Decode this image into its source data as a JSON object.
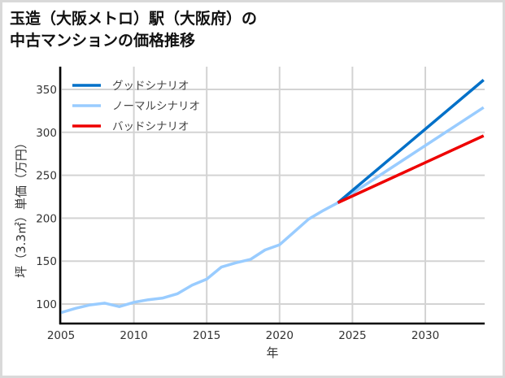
{
  "title": {
    "line1": "玉造（大阪メトロ）駅（大阪府）の",
    "line2": "中古マンションの価格推移"
  },
  "colors": {
    "good": "#0070c8",
    "normal": "#99ccff",
    "bad": "#ee0000",
    "grid": "#d3d3d3",
    "axis": "#000000",
    "border": "#d9d9d9"
  },
  "chart_data": {
    "type": "line",
    "title": "玉造（大阪メトロ）駅（大阪府）の中古マンションの価格推移",
    "xlabel": "年",
    "ylabel": "坪（3.3㎡）単価（万円）",
    "xlim": [
      2005,
      2034
    ],
    "ylim": [
      77,
      377
    ],
    "xticks": [
      2005,
      2010,
      2015,
      2020,
      2025,
      2030
    ],
    "yticks": [
      100,
      150,
      200,
      250,
      300,
      350
    ],
    "grid": true,
    "legend_position": "upper left",
    "series": [
      {
        "name": "グッドシナリオ",
        "color": "#0070c8",
        "x": [
          2024,
          2034
        ],
        "values": [
          218,
          361
        ]
      },
      {
        "name": "ノーマルシナリオ",
        "color": "#99ccff",
        "x": [
          2005,
          2006,
          2007,
          2008,
          2009,
          2010,
          2011,
          2012,
          2013,
          2014,
          2015,
          2016,
          2017,
          2018,
          2019,
          2020,
          2021,
          2022,
          2023,
          2024,
          2034
        ],
        "values": [
          90,
          95,
          99,
          101,
          97,
          102,
          105,
          107,
          112,
          122,
          129,
          143,
          148,
          152,
          163,
          169,
          184,
          199,
          209,
          218,
          329
        ]
      },
      {
        "name": "バッドシナリオ",
        "color": "#ee0000",
        "x": [
          2024,
          2034
        ],
        "values": [
          218,
          296
        ]
      }
    ]
  }
}
